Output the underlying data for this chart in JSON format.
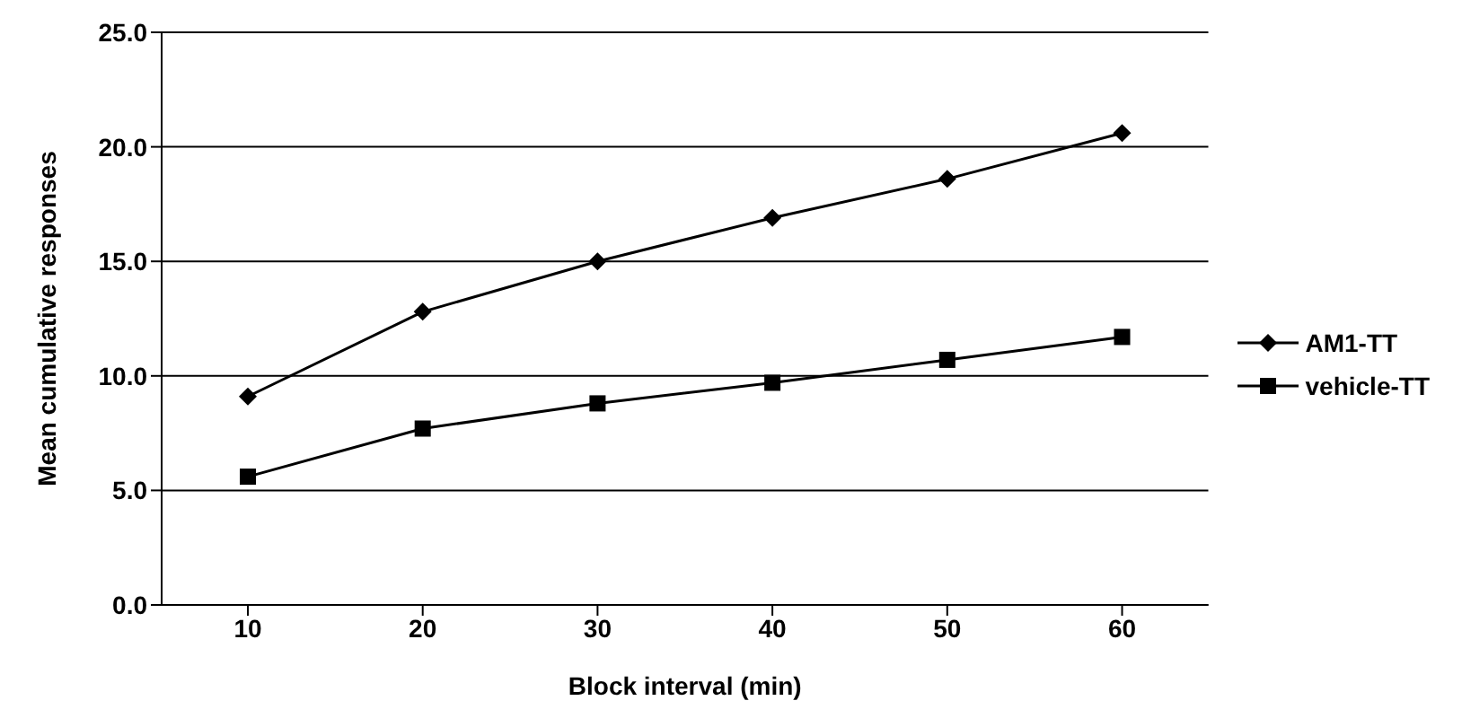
{
  "chart_data": {
    "type": "line",
    "xlabel": "Block interval (min)",
    "ylabel": "Mean cumulative responses",
    "categories": [
      "10",
      "20",
      "30",
      "40",
      "50",
      "60"
    ],
    "series": [
      {
        "name": "AM1-TT",
        "color": "#000000",
        "marker": "diamond",
        "values": [
          9.1,
          12.8,
          15.0,
          16.9,
          18.6,
          20.6
        ]
      },
      {
        "name": "vehicle-TT",
        "color": "#000000",
        "marker": "square",
        "values": [
          5.6,
          7.7,
          8.8,
          9.7,
          10.7,
          11.7
        ]
      }
    ],
    "ylim": [
      0,
      25
    ],
    "yticks": [
      {
        "value": 0,
        "label": "0.0"
      },
      {
        "value": 5,
        "label": "5.0"
      },
      {
        "value": 10,
        "label": "10.0"
      },
      {
        "value": 15,
        "label": "15.0"
      },
      {
        "value": 20,
        "label": "20.0"
      },
      {
        "value": 25,
        "label": "25.0"
      }
    ],
    "grid": "y",
    "legend": "right",
    "line_style": "solid"
  }
}
